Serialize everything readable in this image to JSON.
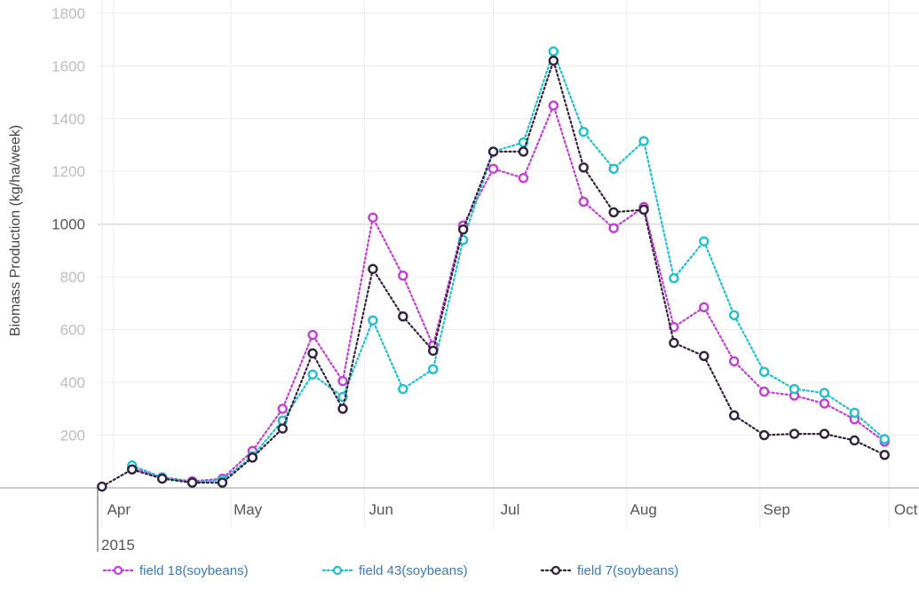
{
  "chart_data": {
    "type": "line",
    "title": "",
    "xlabel": "",
    "ylabel": "Biomass Production (kg/ha/week)",
    "year_label": "2015",
    "ylim": [
      0,
      1850
    ],
    "xlim": [
      "2015-03-31",
      "2015-10-08"
    ],
    "y_ticks": [
      200,
      400,
      600,
      800,
      1000,
      1200,
      1400,
      1600,
      1800
    ],
    "x_ticks": [
      {
        "label": "Apr",
        "date": "2015-04-01"
      },
      {
        "label": "May",
        "date": "2015-05-01"
      },
      {
        "label": "Jun",
        "date": "2015-06-01"
      },
      {
        "label": "Jul",
        "date": "2015-07-01"
      },
      {
        "label": "Aug",
        "date": "2015-08-01"
      },
      {
        "label": "Sep",
        "date": "2015-09-01"
      },
      {
        "label": "Oct",
        "date": "2015-10-01"
      }
    ],
    "grid": true,
    "legend_position": "bottom",
    "x": [
      "2015-04-01",
      "2015-04-08",
      "2015-04-15",
      "2015-04-22",
      "2015-04-29",
      "2015-05-06",
      "2015-05-13",
      "2015-05-20",
      "2015-05-27",
      "2015-06-03",
      "2015-06-10",
      "2015-06-17",
      "2015-06-24",
      "2015-07-01",
      "2015-07-08",
      "2015-07-15",
      "2015-07-22",
      "2015-07-29",
      "2015-08-05",
      "2015-08-12",
      "2015-08-19",
      "2015-08-26",
      "2015-09-02",
      "2015-09-09",
      "2015-09-16",
      "2015-09-23",
      "2015-09-30"
    ],
    "series": [
      {
        "name": "field 18(soybeans)",
        "color": "#c13fd3",
        "values": [
          null,
          75,
          40,
          25,
          35,
          140,
          300,
          580,
          405,
          1025,
          805,
          540,
          995,
          1210,
          1175,
          1450,
          1085,
          985,
          1065,
          610,
          685,
          480,
          365,
          350,
          320,
          260,
          175
        ]
      },
      {
        "name": "field 43(soybeans)",
        "color": "#1fbfcf",
        "values": [
          null,
          85,
          40,
          20,
          30,
          120,
          255,
          430,
          345,
          635,
          375,
          450,
          940,
          1275,
          1310,
          1655,
          1350,
          1210,
          1315,
          795,
          935,
          655,
          440,
          375,
          360,
          285,
          185
        ]
      },
      {
        "name": "field 7(soybeans)",
        "color": "#33213d",
        "values": [
          5,
          70,
          35,
          20,
          20,
          115,
          225,
          510,
          300,
          830,
          650,
          520,
          980,
          1275,
          1275,
          1620,
          1215,
          1045,
          1055,
          550,
          500,
          275,
          200,
          205,
          205,
          180,
          125
        ]
      }
    ]
  }
}
